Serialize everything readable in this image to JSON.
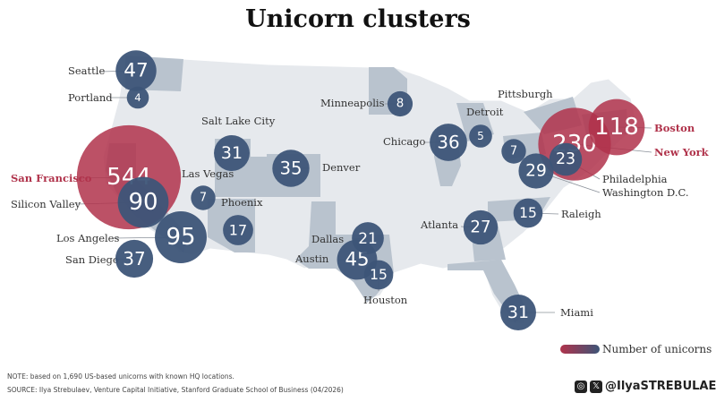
{
  "title": "Unicorn clusters",
  "legend_label": "Number of unicorns",
  "note": "NOTE: based on 1,690 US-based unicorns with known HQ locations.",
  "source": "SOURCE: Ilya Strebulaev, Venture Capital Initiative, Stanford Graduate School of Business (04/2026)",
  "handle": "@IlyaSTREBULAEV",
  "social_icons": [
    "instagram-icon",
    "x-icon"
  ],
  "colors": {
    "highlight": "#b0334b",
    "bubble_blue": "#3d5578",
    "bubble_red": "#b0334b",
    "state_dark": "#b9c3ce",
    "state_light": "#e6e9ed"
  },
  "cities": [
    {
      "name": "Seattle",
      "count": 47,
      "highlight": false
    },
    {
      "name": "Portland",
      "count": 4,
      "highlight": false
    },
    {
      "name": "San Francisco",
      "count": 544,
      "highlight": true
    },
    {
      "name": "Silicon Valley",
      "count": 90,
      "highlight": false
    },
    {
      "name": "Los Angeles",
      "count": 95,
      "highlight": false
    },
    {
      "name": "San Diego",
      "count": 37,
      "highlight": false
    },
    {
      "name": "Las Vegas",
      "count": 7,
      "highlight": false
    },
    {
      "name": "Phoenix",
      "count": 17,
      "highlight": false
    },
    {
      "name": "Salt Lake City",
      "count": 31,
      "highlight": false
    },
    {
      "name": "Denver",
      "count": 35,
      "highlight": false
    },
    {
      "name": "Minneapolis",
      "count": 8,
      "highlight": false
    },
    {
      "name": "Chicago",
      "count": 36,
      "highlight": false
    },
    {
      "name": "Detroit",
      "count": 5,
      "highlight": false
    },
    {
      "name": "Pittsburgh",
      "count": 7,
      "highlight": false
    },
    {
      "name": "New York",
      "count": 230,
      "highlight": true
    },
    {
      "name": "Boston",
      "count": 118,
      "highlight": true
    },
    {
      "name": "Philadelphia",
      "count": 23,
      "highlight": false
    },
    {
      "name": "Washington D.C.",
      "count": 29,
      "highlight": false
    },
    {
      "name": "Raleigh",
      "count": 15,
      "highlight": false
    },
    {
      "name": "Atlanta",
      "count": 27,
      "highlight": false
    },
    {
      "name": "Dallas",
      "count": 21,
      "highlight": false
    },
    {
      "name": "Austin",
      "count": 45,
      "highlight": false
    },
    {
      "name": "Houston",
      "count": 15,
      "highlight": false
    },
    {
      "name": "Miami",
      "count": 31,
      "highlight": false
    }
  ]
}
